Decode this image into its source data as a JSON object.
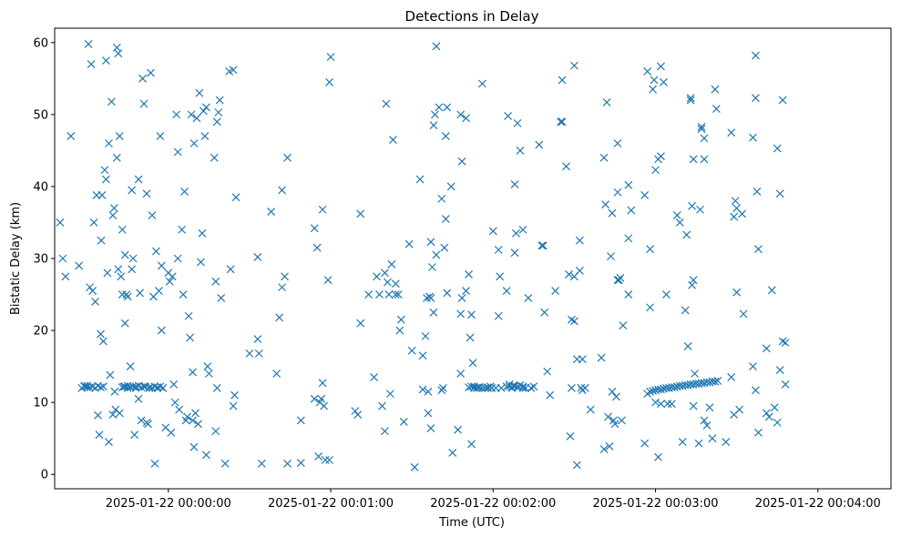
{
  "chart_data": {
    "type": "scatter",
    "title": "Detections in Delay",
    "xlabel": "Time (UTC)",
    "ylabel": "Bistatic Delay (km)",
    "marker": "x",
    "color": "#1f77b4",
    "grid": false,
    "x_ticks": [
      "2025-01-22 00:00:00",
      "2025-01-22 00:01:00",
      "2025-01-22 00:02:00",
      "2025-01-22 00:03:00",
      "2025-01-22 00:04:00"
    ],
    "y_ticks": [
      0,
      10,
      20,
      30,
      40,
      50,
      60
    ],
    "xlim": [
      -42,
      267
    ],
    "ylim": [
      -2,
      62
    ],
    "points": [
      [
        -40,
        35
      ],
      [
        -39,
        30
      ],
      [
        -38,
        27.5
      ],
      [
        -36,
        47
      ],
      [
        -33,
        29
      ],
      [
        -32,
        12
      ],
      [
        -31,
        12.3
      ],
      [
        -30,
        12.1
      ],
      [
        -29.5,
        59.8
      ],
      [
        -29,
        26
      ],
      [
        -28.5,
        57
      ],
      [
        -28,
        25.5
      ],
      [
        -27.5,
        35
      ],
      [
        -27,
        24
      ],
      [
        -26.5,
        38.8
      ],
      [
        -26,
        8.2
      ],
      [
        -25.5,
        5.5
      ],
      [
        -25,
        19.5
      ],
      [
        -24.8,
        32.5
      ],
      [
        -24.5,
        38.8
      ],
      [
        -24,
        18.5
      ],
      [
        -23.5,
        42.3
      ],
      [
        -23,
        41
      ],
      [
        -23,
        57.5
      ],
      [
        -22.5,
        28
      ],
      [
        -22,
        4.5
      ],
      [
        -22,
        46
      ],
      [
        -21.5,
        13.8
      ],
      [
        -21,
        51.8
      ],
      [
        -20.5,
        36
      ],
      [
        -20.5,
        8.3
      ],
      [
        -20,
        37
      ],
      [
        -19.8,
        11.5
      ],
      [
        -19.5,
        9
      ],
      [
        -19,
        44
      ],
      [
        -19,
        59.3
      ],
      [
        -18.5,
        58.5
      ],
      [
        -18.5,
        28.5
      ],
      [
        -18,
        8.5
      ],
      [
        -18,
        47
      ],
      [
        -17.5,
        27.5
      ],
      [
        -17,
        25
      ],
      [
        -17,
        34
      ],
      [
        -16.5,
        12.2
      ],
      [
        -16,
        21
      ],
      [
        -16,
        30.5
      ],
      [
        -15.5,
        25
      ],
      [
        -15,
        24.7
      ],
      [
        -15,
        12
      ],
      [
        -14,
        15
      ],
      [
        -13.5,
        28.5
      ],
      [
        -13.5,
        39.5
      ],
      [
        -13,
        30
      ],
      [
        -12.5,
        5.5
      ],
      [
        -12,
        12.2
      ],
      [
        -11,
        41
      ],
      [
        -11,
        10.5
      ],
      [
        -10.5,
        25.2
      ],
      [
        -10,
        7.5
      ],
      [
        -9.5,
        55
      ],
      [
        -9,
        51.5
      ],
      [
        -8.5,
        12.2
      ],
      [
        -8,
        39
      ],
      [
        -8,
        7.2
      ],
      [
        -7.5,
        7
      ],
      [
        -7,
        12
      ],
      [
        -6.5,
        55.8
      ],
      [
        -6,
        36
      ],
      [
        -5.5,
        24.7
      ],
      [
        -5,
        1.5
      ],
      [
        -4.5,
        31
      ],
      [
        -4,
        12
      ],
      [
        -3.5,
        25.5
      ],
      [
        -3,
        47
      ],
      [
        -2.5,
        20
      ],
      [
        -2.5,
        29
      ],
      [
        -2,
        12
      ],
      [
        -1,
        6.5
      ],
      [
        0,
        28
      ],
      [
        0.5,
        26.8
      ],
      [
        1,
        5.8
      ],
      [
        1.5,
        27.5
      ],
      [
        2,
        12.5
      ],
      [
        2.5,
        10
      ],
      [
        3,
        50
      ],
      [
        3.5,
        44.8
      ],
      [
        3.5,
        30
      ],
      [
        4,
        9
      ],
      [
        5,
        34
      ],
      [
        5.5,
        25
      ],
      [
        6,
        39.3
      ],
      [
        6.5,
        7.5
      ],
      [
        7,
        8
      ],
      [
        7.5,
        22
      ],
      [
        8,
        19
      ],
      [
        8.5,
        50
      ],
      [
        9,
        14.2
      ],
      [
        9,
        7.5
      ],
      [
        9.5,
        3.8
      ],
      [
        9.5,
        46
      ],
      [
        10,
        8.5
      ],
      [
        10.5,
        49.5
      ],
      [
        11,
        7
      ],
      [
        11.5,
        53
      ],
      [
        12,
        29.5
      ],
      [
        12.5,
        33.5
      ],
      [
        13,
        50.5
      ],
      [
        13.5,
        47
      ],
      [
        14,
        51
      ],
      [
        14,
        2.7
      ],
      [
        14.5,
        15
      ],
      [
        15,
        14
      ],
      [
        17,
        44
      ],
      [
        17.5,
        26.8
      ],
      [
        17.5,
        6
      ],
      [
        18,
        12
      ],
      [
        18,
        49
      ],
      [
        18.5,
        50.3
      ],
      [
        19,
        52
      ],
      [
        19.5,
        24.5
      ],
      [
        21,
        1.5
      ],
      [
        22.5,
        56
      ],
      [
        23,
        28.5
      ],
      [
        24,
        56.2
      ],
      [
        24,
        9.5
      ],
      [
        24.5,
        11
      ],
      [
        25,
        38.5
      ],
      [
        30,
        16.8
      ],
      [
        33,
        30.2
      ],
      [
        33,
        18.8
      ],
      [
        33.5,
        16.8
      ],
      [
        34.5,
        1.5
      ],
      [
        38,
        36.5
      ],
      [
        40,
        14
      ],
      [
        41,
        21.8
      ],
      [
        42,
        26
      ],
      [
        42,
        39.5
      ],
      [
        43,
        27.5
      ],
      [
        44,
        1.5
      ],
      [
        44,
        44
      ],
      [
        49,
        1.6
      ],
      [
        49,
        7.5
      ],
      [
        54,
        10.5
      ],
      [
        54,
        34.2
      ],
      [
        55,
        31.5
      ],
      [
        55.5,
        2.5
      ],
      [
        56,
        10
      ],
      [
        56.5,
        10.5
      ],
      [
        57,
        36.8
      ],
      [
        57,
        12.7
      ],
      [
        57.5,
        9.5
      ],
      [
        58,
        2
      ],
      [
        59,
        27
      ],
      [
        59.5,
        2
      ],
      [
        59.5,
        54.5
      ],
      [
        60,
        58
      ],
      [
        69,
        8.8
      ],
      [
        70,
        8.3
      ],
      [
        71,
        36.2
      ],
      [
        71,
        21
      ],
      [
        74,
        25
      ],
      [
        76,
        13.5
      ],
      [
        77,
        27.5
      ],
      [
        78,
        25
      ],
      [
        79,
        9.5
      ],
      [
        80,
        6
      ],
      [
        80,
        28
      ],
      [
        80.5,
        51.5
      ],
      [
        81,
        26.7
      ],
      [
        81.5,
        25
      ],
      [
        82,
        11.2
      ],
      [
        82.5,
        29.2
      ],
      [
        83,
        46.5
      ],
      [
        84,
        26.5
      ],
      [
        84,
        25
      ],
      [
        85,
        25
      ],
      [
        85.5,
        20
      ],
      [
        86,
        21.5
      ],
      [
        87,
        7.3
      ],
      [
        89,
        32
      ],
      [
        90,
        17.2
      ],
      [
        91,
        1
      ],
      [
        93,
        41
      ],
      [
        94,
        11.8
      ],
      [
        94,
        16.5
      ],
      [
        95,
        19.2
      ],
      [
        95.5,
        24.5
      ],
      [
        96,
        11.5
      ],
      [
        96,
        8.5
      ],
      [
        96.5,
        24.7
      ],
      [
        97,
        24.5
      ],
      [
        97,
        6.4
      ],
      [
        97,
        32.3
      ],
      [
        97.5,
        28.8
      ],
      [
        98,
        48.5
      ],
      [
        98,
        22.5
      ],
      [
        98.5,
        50
      ],
      [
        99,
        59.5
      ],
      [
        99,
        30.5
      ],
      [
        100,
        51
      ],
      [
        101,
        38.3
      ],
      [
        101,
        11.7
      ],
      [
        101.5,
        12
      ],
      [
        102,
        31.5
      ],
      [
        102.5,
        47
      ],
      [
        102.5,
        35.5
      ],
      [
        103,
        51
      ],
      [
        103,
        25.2
      ],
      [
        104.5,
        40
      ],
      [
        105,
        3
      ],
      [
        107,
        6.2
      ],
      [
        108,
        50
      ],
      [
        108,
        22.3
      ],
      [
        108,
        14
      ],
      [
        108.5,
        24.5
      ],
      [
        108.5,
        43.5
      ],
      [
        110,
        25.5
      ],
      [
        110,
        49.5
      ],
      [
        111,
        27.8
      ],
      [
        111.5,
        19
      ],
      [
        112,
        22.2
      ],
      [
        112,
        4.2
      ],
      [
        112.5,
        15.5
      ],
      [
        113,
        12.2
      ],
      [
        114,
        12
      ],
      [
        115,
        12.1
      ],
      [
        116,
        54.3
      ],
      [
        117,
        12
      ],
      [
        118,
        12.1
      ],
      [
        119,
        12.2
      ],
      [
        119.5,
        12
      ],
      [
        120,
        33.8
      ],
      [
        121,
        12
      ],
      [
        122,
        31.2
      ],
      [
        122,
        22
      ],
      [
        122.5,
        27.5
      ],
      [
        123,
        12
      ],
      [
        125,
        25.5
      ],
      [
        125,
        12.2
      ],
      [
        125.5,
        49.8
      ],
      [
        126,
        12.5
      ],
      [
        127,
        12.1
      ],
      [
        127.5,
        12.3
      ],
      [
        128,
        40.3
      ],
      [
        128,
        30.8
      ],
      [
        128.5,
        33.5
      ],
      [
        129,
        48.8
      ],
      [
        129.5,
        12.2
      ],
      [
        130,
        12.4
      ],
      [
        130,
        45
      ],
      [
        131,
        12
      ],
      [
        131,
        34
      ],
      [
        133,
        24.5
      ],
      [
        134,
        12
      ],
      [
        135,
        12.2
      ],
      [
        137,
        45.8
      ],
      [
        138,
        31.8
      ],
      [
        138.5,
        31.8
      ],
      [
        139,
        22.5
      ],
      [
        140,
        14.3
      ],
      [
        141,
        11
      ],
      [
        143,
        25.5
      ],
      [
        145,
        49
      ],
      [
        145.5,
        54.8
      ],
      [
        145.5,
        49
      ],
      [
        147,
        42.8
      ],
      [
        148,
        27.8
      ],
      [
        148.5,
        5.3
      ],
      [
        149,
        21.5
      ],
      [
        149,
        12
      ],
      [
        150,
        21.3
      ],
      [
        150,
        27.5
      ],
      [
        150,
        56.8
      ],
      [
        151,
        1.3
      ],
      [
        151,
        16
      ],
      [
        152,
        32.5
      ],
      [
        152,
        28.3
      ],
      [
        152.5,
        12
      ],
      [
        153,
        11.7
      ],
      [
        153,
        16
      ],
      [
        154,
        12
      ],
      [
        156,
        9
      ],
      [
        160,
        16.2
      ],
      [
        161,
        3.5
      ],
      [
        161,
        44
      ],
      [
        161.5,
        37.5
      ],
      [
        162,
        51.7
      ],
      [
        162.5,
        8
      ],
      [
        163,
        3.9
      ],
      [
        163.5,
        30.3
      ],
      [
        164,
        11.5
      ],
      [
        164,
        36.3
      ],
      [
        164.5,
        7.5
      ],
      [
        165,
        7
      ],
      [
        165.5,
        10.8
      ],
      [
        166,
        46
      ],
      [
        166,
        39.2
      ],
      [
        166,
        27
      ],
      [
        166.5,
        27
      ],
      [
        167,
        27.3
      ],
      [
        167.5,
        7.5
      ],
      [
        168,
        20.7
      ],
      [
        170,
        32.8
      ],
      [
        170,
        25
      ],
      [
        170,
        40.2
      ],
      [
        171,
        36.7
      ],
      [
        176,
        4.3
      ],
      [
        176,
        38.8
      ],
      [
        177,
        56
      ],
      [
        178,
        31.3
      ],
      [
        178,
        23.2
      ],
      [
        179,
        53.5
      ],
      [
        179.5,
        54.8
      ],
      [
        180,
        42.3
      ],
      [
        180,
        10
      ],
      [
        181,
        43.8
      ],
      [
        181,
        2.4
      ],
      [
        182,
        44.2
      ],
      [
        182,
        56.7
      ],
      [
        182,
        9.8
      ],
      [
        183,
        54.5
      ],
      [
        184,
        25
      ],
      [
        184.5,
        9.8
      ],
      [
        186,
        9.8
      ],
      [
        188,
        36
      ],
      [
        189,
        35
      ],
      [
        190,
        4.5
      ],
      [
        191,
        22.8
      ],
      [
        191.5,
        33.3
      ],
      [
        192,
        17.8
      ],
      [
        193,
        52.3
      ],
      [
        193,
        52
      ],
      [
        193.5,
        37.3
      ],
      [
        193.5,
        26.3
      ],
      [
        194,
        43.8
      ],
      [
        194,
        27
      ],
      [
        194,
        9.5
      ],
      [
        194.5,
        14
      ],
      [
        196,
        4.3
      ],
      [
        196.5,
        36.8
      ],
      [
        197,
        48.3
      ],
      [
        197,
        48
      ],
      [
        198,
        46.7
      ],
      [
        198,
        43.8
      ],
      [
        198,
        7.5
      ],
      [
        199,
        6.8
      ],
      [
        200,
        9.3
      ],
      [
        201,
        5
      ],
      [
        202,
        53.5
      ],
      [
        202.5,
        50.8
      ],
      [
        206,
        4.5
      ],
      [
        208,
        47.5
      ],
      [
        208,
        13.5
      ],
      [
        209,
        35.8
      ],
      [
        209,
        8.3
      ],
      [
        209.5,
        38
      ],
      [
        210,
        37
      ],
      [
        210,
        25.3
      ],
      [
        211,
        9
      ],
      [
        212,
        36.2
      ],
      [
        212.5,
        22.3
      ],
      [
        216,
        46.8
      ],
      [
        216,
        15
      ],
      [
        217,
        58.2
      ],
      [
        217,
        52.3
      ],
      [
        217,
        11.7
      ],
      [
        217.5,
        39.3
      ],
      [
        218,
        5.8
      ],
      [
        218,
        31.3
      ],
      [
        221,
        17.5
      ],
      [
        221,
        8.5
      ],
      [
        222,
        8
      ],
      [
        223,
        25.6
      ],
      [
        224,
        9.3
      ],
      [
        225,
        45.3
      ],
      [
        225,
        7.2
      ],
      [
        226,
        39
      ],
      [
        226,
        14.5
      ],
      [
        227,
        52
      ],
      [
        227,
        18.5
      ],
      [
        228,
        18.3
      ],
      [
        228,
        12.5
      ],
      [
        -31,
        12.2
      ],
      [
        -30,
        12.3
      ],
      [
        -29,
        12.1
      ],
      [
        -28,
        12.2
      ],
      [
        -27,
        12
      ],
      [
        -26,
        12.3
      ],
      [
        -25,
        12.1
      ],
      [
        -24,
        12.2
      ],
      [
        -17,
        12.1
      ],
      [
        -16,
        12.2
      ],
      [
        -15,
        12.3
      ],
      [
        -14,
        12.1
      ],
      [
        -13,
        12.2
      ],
      [
        -12,
        12
      ],
      [
        -11,
        12.3
      ],
      [
        -10,
        12.1
      ],
      [
        -9,
        12.2
      ],
      [
        -7,
        12.1
      ],
      [
        -6,
        12
      ],
      [
        -5,
        12.2
      ],
      [
        -4,
        12.1
      ],
      [
        -3,
        12.2
      ],
      [
        -2,
        12
      ],
      [
        111,
        12.1
      ],
      [
        112,
        12.2
      ],
      [
        113,
        12
      ],
      [
        114.5,
        12.1
      ],
      [
        116,
        12
      ],
      [
        118,
        12
      ],
      [
        126,
        12.2
      ],
      [
        127,
        12
      ],
      [
        128,
        12.3
      ],
      [
        129,
        12.1
      ],
      [
        131,
        12.2
      ],
      [
        132,
        12
      ],
      [
        177,
        11.2
      ],
      [
        178,
        11.5
      ],
      [
        179,
        11.6
      ],
      [
        180,
        11.7
      ],
      [
        181,
        11.8
      ],
      [
        182,
        11.8
      ],
      [
        183,
        11.9
      ],
      [
        184,
        12
      ],
      [
        185,
        12
      ],
      [
        186,
        12.1
      ],
      [
        187,
        12.1
      ],
      [
        188,
        12.2
      ],
      [
        189,
        12.3
      ],
      [
        190,
        12.3
      ],
      [
        191,
        12.4
      ],
      [
        192,
        12.4
      ],
      [
        193,
        12.5
      ],
      [
        194,
        12.5
      ],
      [
        195,
        12.6
      ],
      [
        196,
        12.6
      ],
      [
        197,
        12.7
      ],
      [
        198,
        12.7
      ],
      [
        199,
        12.8
      ],
      [
        200,
        12.8
      ],
      [
        201,
        12.9
      ],
      [
        202,
        12.9
      ],
      [
        203,
        13
      ]
    ]
  }
}
